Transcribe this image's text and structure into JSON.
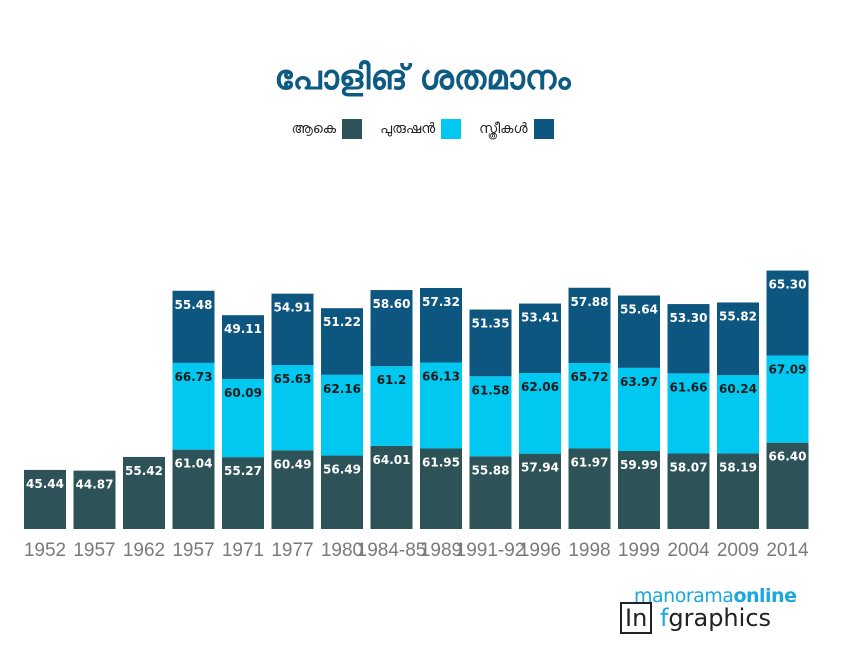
{
  "title": "പോളിങ് ശതമാനം",
  "legend": [
    {
      "label": "ആകെ",
      "color": "#2d5258"
    },
    {
      "label": "പുരുഷൻ",
      "color": "#00c8f0"
    },
    {
      "label": "സ്ത്രീകൾ",
      "color": "#0d5680"
    }
  ],
  "brand": {
    "top_a": "manorama",
    "top_b": "online",
    "bottom_a": "In",
    "bottom_dot": "f",
    "bottom_b": "graphics"
  },
  "chart_data": {
    "type": "bar",
    "stacked": true,
    "categories": [
      "1952",
      "1957",
      "1962",
      "1957",
      "1971",
      "1977",
      "1980",
      "1984-85",
      "1989",
      "1991-92",
      "1996",
      "1998",
      "1999",
      "2004",
      "2009",
      "2014"
    ],
    "series": [
      {
        "name": "ആകെ",
        "color": "#2d5258",
        "labels": [
          "45.44",
          "44.87",
          "55.42",
          "61.04",
          "55.27",
          "60.49",
          "56.49",
          "64.01",
          "61.95",
          "55.88",
          "57.94",
          "61.97",
          "59.99",
          "58.07",
          "58.19",
          "66.40"
        ],
        "values": [
          45.44,
          44.87,
          55.42,
          61.04,
          55.27,
          60.49,
          56.49,
          64.01,
          61.95,
          55.88,
          57.94,
          61.97,
          59.99,
          58.07,
          58.19,
          66.4
        ]
      },
      {
        "name": "പുരുഷൻ",
        "color": "#00c8f0",
        "labels": [
          null,
          null,
          null,
          "66.73",
          "60.09",
          "65.63",
          "62.16",
          "61.2",
          "66.13",
          "61.58",
          "62.06",
          "65.72",
          "63.97",
          "61.66",
          "60.24",
          "67.09"
        ],
        "values": [
          null,
          null,
          null,
          66.73,
          60.09,
          65.63,
          62.16,
          61.2,
          66.13,
          61.58,
          62.06,
          65.72,
          63.97,
          61.66,
          60.24,
          67.09
        ]
      },
      {
        "name": "സ്ത്രീകൾ",
        "color": "#0d5680",
        "labels": [
          null,
          null,
          null,
          "55.48",
          "49.11",
          "54.91",
          "51.22",
          "58.60",
          "57.32",
          "51.35",
          "53.41",
          "57.88",
          "55.64",
          "53.30",
          "55.82",
          "65.30"
        ],
        "values": [
          null,
          null,
          null,
          55.48,
          49.11,
          54.91,
          51.22,
          58.6,
          57.32,
          51.35,
          53.41,
          57.88,
          55.64,
          53.3,
          55.82,
          65.3
        ]
      }
    ],
    "xlabel": "",
    "ylabel": "",
    "grid": false,
    "legend_position": "top-center"
  }
}
